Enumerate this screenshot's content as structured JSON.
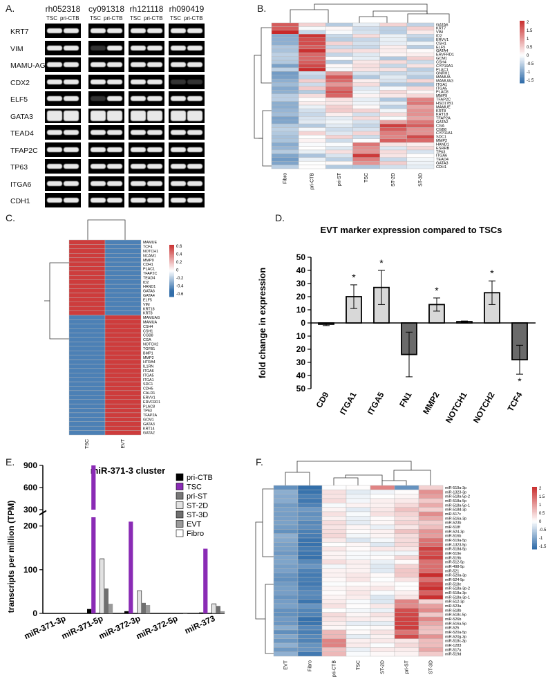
{
  "panels": {
    "A": "A.",
    "B": "B.",
    "C": "C.",
    "D": "D.",
    "E": "E.",
    "F": "F."
  },
  "gel": {
    "samples": [
      "rh052318",
      "cy091318",
      "rh121118",
      "rh090419"
    ],
    "lane_labels": [
      "TSC",
      "pri-CTB"
    ],
    "genes": [
      "KRT7",
      "VIM",
      "MAMU-AG",
      "CDX2",
      "ELF5",
      "GATA3",
      "TEAD4",
      "TFAP2C",
      "TP63",
      "ITGA6",
      "CDH1"
    ]
  },
  "heatmapB": {
    "columns": [
      "Fibro",
      "pri-CTB",
      "pri-ST",
      "TSC",
      "ST-2D",
      "ST-3D"
    ],
    "rows": [
      "GATA6",
      "KRT7",
      "VIM",
      "ID2",
      "ERVV1",
      "CSH1",
      "ELF5",
      "GATA4",
      "ERVFRD1",
      "GCM1",
      "CSH4",
      "CYP19A1",
      "PLAC1",
      "GNRH1",
      "MAMUA",
      "MAMUAG",
      "ITGA1",
      "ITGA5",
      "PLAC8",
      "MMP9",
      "TFAP2C",
      "HSD17B1",
      "MAMUE",
      "KRT8",
      "KRT18",
      "TFAP2A",
      "GATA2",
      "CGA",
      "CGB8",
      "CYP11A1",
      "SDC1",
      "MMP2",
      "HAND1",
      "ESRRB",
      "TP63",
      "ITGA6",
      "TEAD4",
      "GATA3",
      "CDH1"
    ],
    "legend_ticks": [
      "2",
      "1.5",
      "1",
      "0.5",
      "0",
      "-0.5",
      "-1",
      "-1.5"
    ]
  },
  "heatmapC": {
    "columns": [
      "TSC",
      "EVT"
    ],
    "rows": [
      "MAMUE",
      "TCF4",
      "NOTCH1",
      "NCAM1",
      "MMP9",
      "CDH1",
      "PLAC1",
      "TFAP2C",
      "TEAD4",
      "ID2",
      "HAND1",
      "GATA6",
      "GATA4",
      "ELF5",
      "VIM",
      "KRT18",
      "KRT8",
      "MAMUAG",
      "MAMUA",
      "CSH4",
      "CSH1",
      "CGB8",
      "CGA",
      "NOTCH2",
      "TGFB1",
      "BMP1",
      "MMP2",
      "HTRA4",
      "IL1RN",
      "ITGA6",
      "ITGA5",
      "ITGA1",
      "SDC1",
      "CDH5",
      "CALD1",
      "ERVV1",
      "ERVFRD1",
      "PLAC8",
      "TP63",
      "TFAP2A",
      "GCM1",
      "GATA3",
      "KRT14",
      "GATA2"
    ],
    "legend_ticks": [
      "0.6",
      "0.4",
      "0.2",
      "0",
      "-0.2",
      "-0.4",
      "-0.6"
    ]
  },
  "chart_data": [
    {
      "type": "bar",
      "title": "EVT marker expression compared to TSCs",
      "ylabel": "fold change in expression",
      "categories": [
        "CD9",
        "ITGA1",
        "ITGA5",
        "FN1",
        "MMP2",
        "NOTCH1",
        "NOTCH2",
        "TCF4"
      ],
      "values": [
        -1,
        20,
        27,
        -24,
        14,
        1,
        23,
        -28
      ],
      "errors": [
        1,
        9,
        13,
        17,
        5,
        0.5,
        9,
        11
      ],
      "significant": [
        false,
        true,
        true,
        false,
        true,
        false,
        true,
        true
      ],
      "significance_marker": "*",
      "y_tick_labels": [
        "50",
        "40",
        "30",
        "20",
        "10",
        "0",
        "10",
        "20",
        "30",
        "40",
        "50"
      ],
      "ylim": [
        -50,
        50
      ]
    },
    {
      "type": "bar",
      "title": "miR-371-3 cluster",
      "ylabel": "transcripts per million (TPM)",
      "categories": [
        "miR-371-3p",
        "miR-371-5p",
        "miR-372-3p",
        "miR-372-5p",
        "miR-373"
      ],
      "series": [
        {
          "name": "pri-CTB",
          "color": "#000000",
          "values": [
            0,
            10,
            5,
            0,
            2
          ]
        },
        {
          "name": "TSC",
          "color": "#8a2bb5",
          "values": [
            0,
            900,
            210,
            0,
            148
          ]
        },
        {
          "name": "pri-ST",
          "color": "#777777",
          "values": [
            0,
            0,
            0,
            0,
            0
          ]
        },
        {
          "name": "ST-2D",
          "color": "#e2e2e2",
          "values": [
            0,
            125,
            52,
            0,
            22
          ]
        },
        {
          "name": "ST-3D",
          "color": "#6f6f6f",
          "values": [
            0,
            57,
            24,
            0,
            17
          ]
        },
        {
          "name": "EVT",
          "color": "#9a9a9a",
          "values": [
            0,
            22,
            19,
            2,
            5
          ]
        },
        {
          "name": "Fibro",
          "color": "#ffffff",
          "values": [
            0,
            0,
            0,
            0,
            0
          ]
        }
      ],
      "y_tick_labels": [
        "0",
        "100",
        "200",
        "300",
        "600",
        "900"
      ],
      "ylim": [
        0,
        900
      ],
      "axis_break": [
        220,
        300
      ]
    }
  ],
  "heatmapF": {
    "columns": [
      "EVT",
      "Fibro",
      "pri-CTB",
      "TSC",
      "ST-2D",
      "pri-ST",
      "ST-3D"
    ],
    "rows": [
      "miR-519a-3p",
      "miR-1323-3p",
      "miR-518a-5p-2",
      "miR-518a-5p",
      "miR-518a-5p-1",
      "miR-518d-3p",
      "miR-517c",
      "miR-516a-3p",
      "miR-523b",
      "miR-518f",
      "miR-524-3p",
      "miR-516b",
      "miR-519a-5p",
      "miR-1323-5p",
      "miR-518d-5p",
      "miR-519e",
      "miR-519b",
      "miR-512-5p",
      "miR-498-5p",
      "miR-521",
      "miR-520a-3p",
      "miR-524-5p",
      "miR-518e",
      "miR-518a-3p-2",
      "miR-518a-3p",
      "miR-518a-3p-1",
      "miR-512-3p",
      "miR-523a",
      "miR-518b",
      "miR-518c-5p",
      "miR-526b",
      "miR-516a-5p",
      "miR-525",
      "miR-520a-5p",
      "miR-520g-3p",
      "miR-518c-3p",
      "miR-1283",
      "miR-517a",
      "miR-519d"
    ],
    "legend_ticks": [
      "2",
      "1.5",
      "1",
      "0.5",
      "0",
      "-0.5",
      "-1",
      "-1.5"
    ]
  }
}
